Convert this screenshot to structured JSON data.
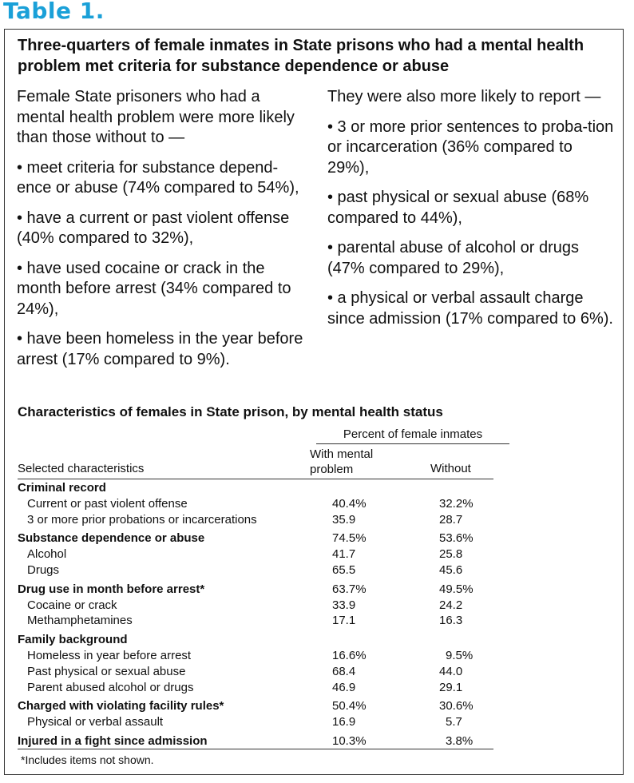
{
  "table_label": "Table 1.",
  "headline": "Three-quarters of female inmates in State prisons who had a mental health problem met criteria for substance dependence or abuse",
  "left_column": {
    "intro": "Female State prisoners who had a mental health problem were more likely than those without to —",
    "bullets": [
      "• meet criteria for substance depend-ence or abuse (74% compared to 54%),",
      "• have a current or past violent offense (40% compared to 32%),",
      "• have used cocaine or crack in the month before arrest (34% compared to 24%),",
      "• have been homeless in the year before arrest (17% compared to 9%)."
    ]
  },
  "right_column": {
    "intro": "They were also more likely to report —",
    "bullets": [
      "• 3 or more prior sentences to proba-tion or incarceration (36% compared to 29%),",
      "• past physical or sexual abuse (68% compared to 44%),",
      "• parental abuse of alcohol or drugs (47% compared to 29%),",
      "• a physical or verbal assault charge since admission (17% compared to 6%)."
    ]
  },
  "table": {
    "title": "Characteristics of females in State prison, by mental health status",
    "group_header": "Percent of female inmates",
    "col_label": "Selected characteristics",
    "col_with_line1": "With mental",
    "col_with_line2": "problem",
    "col_without": "Without",
    "rows": [
      {
        "label": "Criminal record",
        "with": "",
        "without": ""
      },
      {
        "label": "Current or past violent offense",
        "with": "40.4%",
        "without": "32.2%"
      },
      {
        "label": "3 or more prior probations or incarcerations",
        "with": "35.9",
        "without": "28.7"
      },
      {
        "label": "Substance dependence or abuse",
        "with": "74.5%",
        "without": "53.6%"
      },
      {
        "label": "Alcohol",
        "with": "41.7",
        "without": "25.8"
      },
      {
        "label": "Drugs",
        "with": "65.5",
        "without": "45.6"
      },
      {
        "label": "Drug use in month before arrest*",
        "with": "63.7%",
        "without": "49.5%"
      },
      {
        "label": "Cocaine or crack",
        "with": "33.9",
        "without": "24.2"
      },
      {
        "label": "Methamphetamines",
        "with": "17.1",
        "without": "16.3"
      },
      {
        "label": "Family background",
        "with": "",
        "without": ""
      },
      {
        "label": "Homeless in year before arrest",
        "with": "16.6%",
        "without": "9.5%"
      },
      {
        "label": "Past physical or sexual abuse",
        "with": "68.4",
        "without": "44.0"
      },
      {
        "label": "Parent abused alcohol or drugs",
        "with": "46.9",
        "without": "29.1"
      },
      {
        "label": "Charged with violating facility rules*",
        "with": "50.4%",
        "without": "30.6%"
      },
      {
        "label": "Physical or verbal assault",
        "with": "16.9",
        "without": "5.7"
      },
      {
        "label": "Injured in a fight since admission",
        "with": "10.3%",
        "without": "3.8%"
      }
    ],
    "footnote": "*Includes items not shown."
  }
}
